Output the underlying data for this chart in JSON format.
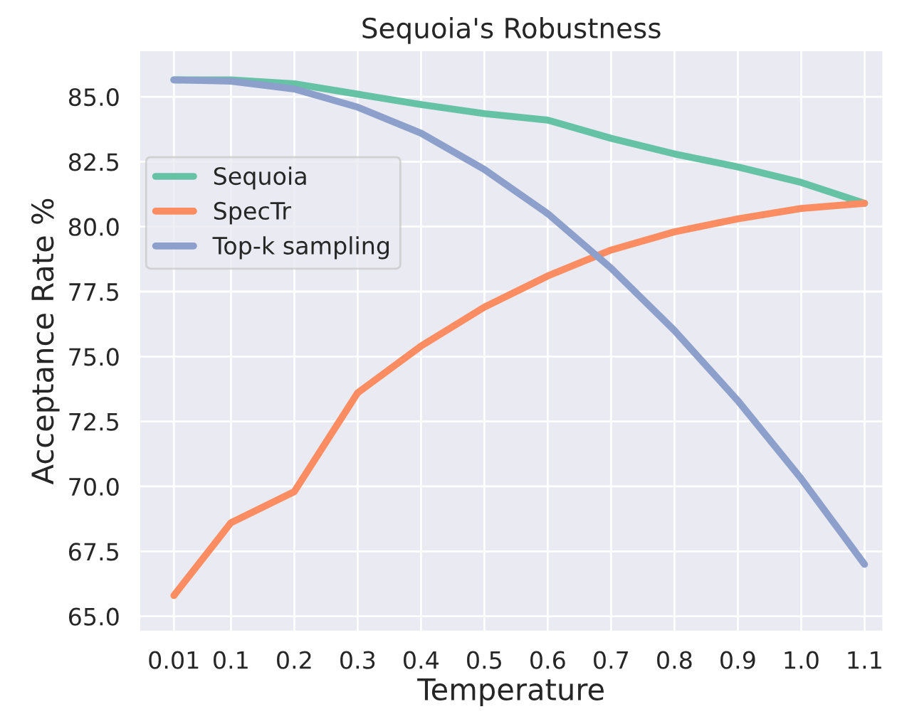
{
  "chart_data": {
    "type": "line",
    "title": "Sequoia's Robustness",
    "xlabel": "Temperature",
    "ylabel": "Acceptance Rate %",
    "x": [
      0.01,
      0.1,
      0.2,
      0.3,
      0.4,
      0.5,
      0.6,
      0.7,
      0.8,
      0.9,
      1.0,
      1.1
    ],
    "xlim": [
      -0.045,
      1.13
    ],
    "xticks": [
      {
        "value": 0.01,
        "label": "0.01"
      },
      {
        "value": 0.1,
        "label": "0.1"
      },
      {
        "value": 0.2,
        "label": "0.2"
      },
      {
        "value": 0.3,
        "label": "0.3"
      },
      {
        "value": 0.4,
        "label": "0.4"
      },
      {
        "value": 0.5,
        "label": "0.5"
      },
      {
        "value": 0.6,
        "label": "0.6"
      },
      {
        "value": 0.7,
        "label": "0.7"
      },
      {
        "value": 0.8,
        "label": "0.8"
      },
      {
        "value": 0.9,
        "label": "0.9"
      },
      {
        "value": 1.0,
        "label": "1.0"
      },
      {
        "value": 1.1,
        "label": "1.1"
      }
    ],
    "ylim": [
      64.4,
      86.8
    ],
    "yticks": [
      {
        "value": 65,
        "label": "65.0"
      },
      {
        "value": 67.5,
        "label": "67.5"
      },
      {
        "value": 70,
        "label": "70.0"
      },
      {
        "value": 72.5,
        "label": "72.5"
      },
      {
        "value": 75,
        "label": "75.0"
      },
      {
        "value": 77.5,
        "label": "77.5"
      },
      {
        "value": 80,
        "label": "80.0"
      },
      {
        "value": 82.5,
        "label": "82.5"
      },
      {
        "value": 85,
        "label": "85.0"
      }
    ],
    "grid": true,
    "legend": "center left",
    "line_style": "solid",
    "series": [
      {
        "name": "Sequoia",
        "color": "#66c2a5",
        "values": [
          85.65,
          85.65,
          85.5,
          85.1,
          84.7,
          84.35,
          84.1,
          83.4,
          82.8,
          82.3,
          81.7,
          80.9
        ]
      },
      {
        "name": "SpecTr",
        "color": "#fc8d62",
        "values": [
          65.8,
          68.6,
          69.8,
          73.6,
          75.4,
          76.9,
          78.1,
          79.1,
          79.8,
          80.3,
          80.7,
          80.9
        ]
      },
      {
        "name": "Top-k sampling",
        "color": "#8da0cb",
        "values": [
          85.65,
          85.6,
          85.3,
          84.6,
          83.6,
          82.2,
          80.5,
          78.4,
          76.0,
          73.3,
          70.3,
          67.0
        ]
      }
    ]
  }
}
